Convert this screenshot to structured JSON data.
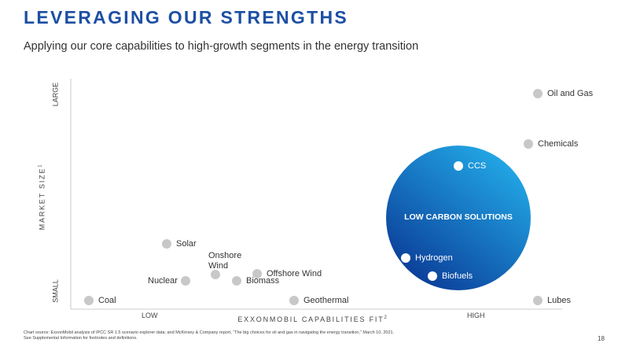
{
  "header": {
    "title": "LEVERAGING OUR STRENGTHS",
    "subtitle": "Applying our core capabilities to high-growth segments in the energy transition"
  },
  "chart": {
    "y_axis_label": "MARKET SIZE",
    "y_axis_note": "1",
    "x_axis_label": "EXXONMOBIL CAPABILITIES FIT",
    "x_axis_note": "2",
    "x_low": "LOW",
    "x_high": "HIGH",
    "y_low": "SMALL",
    "y_high": "LARGE",
    "region_label": "LOW CARBON SOLUTIONS",
    "points": [
      {
        "label": "Oil and Gas"
      },
      {
        "label": "Chemicals"
      },
      {
        "label": "CCS"
      },
      {
        "label": "Hydrogen"
      },
      {
        "label": "Biofuels"
      },
      {
        "label": "Lubes"
      },
      {
        "label": "Solar"
      },
      {
        "label": "Onshore Wind"
      },
      {
        "label": "Offshore Wind"
      },
      {
        "label": "Nuclear"
      },
      {
        "label": "Biomass"
      },
      {
        "label": "Geothermal"
      },
      {
        "label": "Coal"
      }
    ]
  },
  "footnote": [
    "Chart source: ExxonMobil analysis of IPCC SR 1.5 scenario explorer data; and McKinsey & Company report, “The big choices for oil and gas in navigating the energy transition,” March 10, 2021.",
    "See Supplemental Information for footnotes and definitions."
  ],
  "page_number": "18"
}
